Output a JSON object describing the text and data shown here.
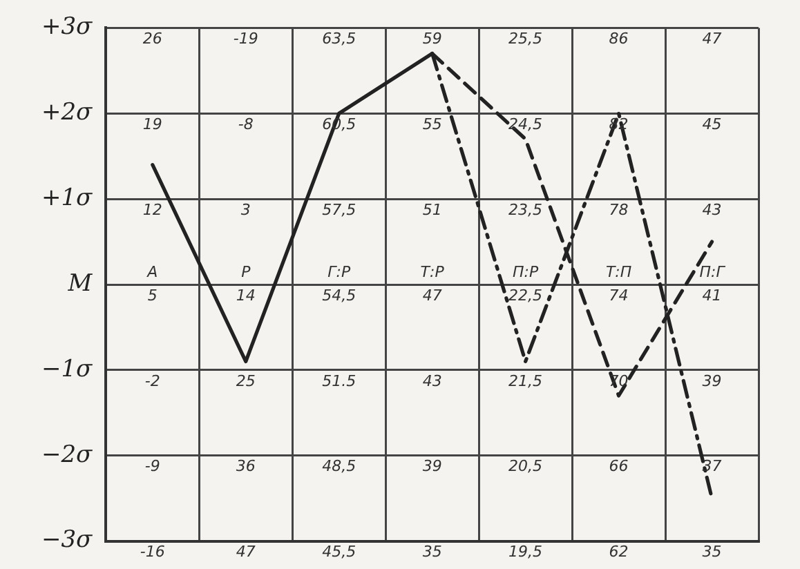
{
  "chart_data": {
    "type": "line",
    "categories": [
      "А",
      "Р",
      "Г:Р",
      "Т:Р",
      "П:Р",
      "Т:П",
      "П:Г"
    ],
    "series": [
      {
        "color": "#222222",
        "line_style": "solid",
        "values": [
          1.4,
          -0.9,
          2.0,
          2.7,
          null,
          null,
          null
        ]
      },
      {
        "color": "#222222",
        "line_style": "dashed",
        "values": [
          null,
          null,
          null,
          2.7,
          1.7,
          -1.3,
          0.5
        ]
      },
      {
        "color": "#222222",
        "line_style": "dashdot",
        "values": [
          null,
          null,
          null,
          2.7,
          -0.9,
          2.0,
          -2.5
        ]
      }
    ],
    "ylim": [
      -3,
      3
    ],
    "yticks": [
      {
        "value": 3,
        "label": "+3σ"
      },
      {
        "value": 2,
        "label": "+2σ"
      },
      {
        "value": 1,
        "label": "+1σ"
      },
      {
        "value": 0,
        "label": "M"
      },
      {
        "value": -1,
        "label": "−1σ"
      },
      {
        "value": -2,
        "label": "−2σ"
      },
      {
        "value": -3,
        "label": "−3σ"
      }
    ],
    "grid": true,
    "legend": false,
    "marker": "none",
    "annotations": [
      "26",
      "19",
      "12",
      "5",
      "-2",
      "-9",
      "-16",
      "-19",
      "-8",
      "3",
      "14",
      "25",
      "36",
      "47",
      "63,5",
      "60,5",
      "57,5",
      "54,5",
      "51.5",
      "48,5",
      "45,5",
      "59",
      "55",
      "51",
      "47",
      "43",
      "39",
      "35",
      "25,5",
      "24,5",
      "23,5",
      "22,5",
      "21,5",
      "20,5",
      "19,5",
      "86",
      "82",
      "78",
      "74",
      "70",
      "66",
      "62",
      "47",
      "45",
      "43",
      "41",
      "39",
      "37",
      "35"
    ]
  }
}
